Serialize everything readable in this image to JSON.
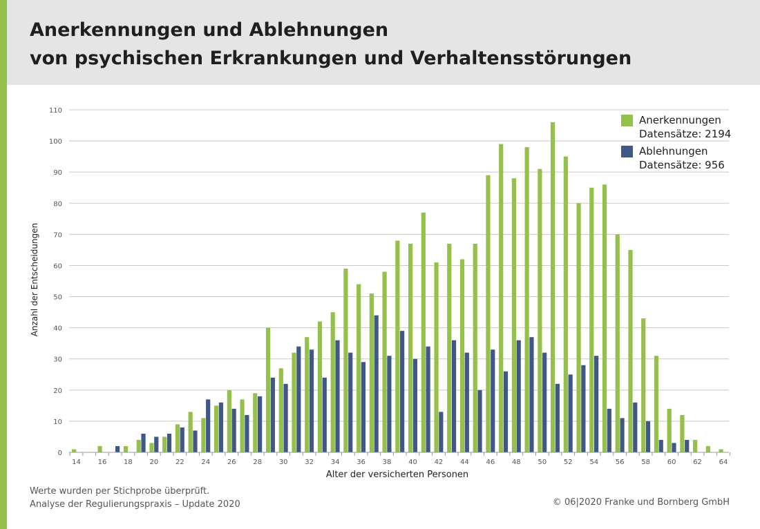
{
  "title": {
    "line1": "Anerkennungen und Ablehnungen",
    "line2": "von psychischen Erkrankungen und Verhaltensstörungen"
  },
  "footer": {
    "note1": "Werte wurden per Stichprobe überprüft.",
    "note2": "Analyse der Regulierungspraxis – Update 2020",
    "copyright": "© 06|2020 Franke und Bornberg GmbH"
  },
  "colors": {
    "accent": "#95c04c",
    "header_bg": "#e5e5e5",
    "anerkennungen": "#95c04c",
    "ablehnungen": "#3f5888",
    "grid": "#c8c8c8"
  },
  "chart_data": {
    "type": "bar",
    "title": "Anerkennungen und Ablehnungen von psychischen Erkrankungen und Verhaltensstörungen",
    "xlabel": "Alter der versicherten Personen",
    "ylabel": "Anzahl der Entscheidungen",
    "ylim": [
      0,
      110
    ],
    "yticks": [
      0,
      10,
      20,
      30,
      40,
      50,
      60,
      70,
      80,
      90,
      100,
      110
    ],
    "xticks": [
      "14",
      "16",
      "18",
      "20",
      "22",
      "24",
      "26",
      "28",
      "30",
      "32",
      "34",
      "36",
      "38",
      "40",
      "42",
      "44",
      "46",
      "48",
      "50",
      "52",
      "54",
      "56",
      "58",
      "60",
      "62",
      "64"
    ],
    "grid": true,
    "legend_position": "top-right",
    "categories": [
      14,
      15,
      16,
      17,
      18,
      19,
      20,
      21,
      22,
      23,
      24,
      25,
      26,
      27,
      28,
      29,
      30,
      31,
      32,
      33,
      34,
      35,
      36,
      37,
      38,
      39,
      40,
      41,
      42,
      43,
      44,
      45,
      46,
      47,
      48,
      49,
      50,
      51,
      52,
      53,
      54,
      55,
      56,
      57,
      58,
      59,
      60,
      61,
      62,
      63,
      64
    ],
    "series": [
      {
        "name": "Anerkennungen",
        "legend_sub": "Datensätze: 2194",
        "color": "#95c04c",
        "values": [
          1,
          0,
          2,
          0,
          2,
          4,
          3,
          5,
          9,
          13,
          11,
          15,
          20,
          17,
          19,
          40,
          27,
          32,
          37,
          42,
          45,
          59,
          54,
          51,
          58,
          68,
          67,
          77,
          61,
          67,
          62,
          67,
          89,
          99,
          88,
          98,
          91,
          106,
          95,
          80,
          85,
          86,
          70,
          65,
          43,
          31,
          14,
          12,
          4,
          2,
          1
        ]
      },
      {
        "name": "Ablehnungen",
        "legend_sub": "Datensätze: 956",
        "color": "#3f5888",
        "values": [
          0,
          0,
          0,
          2,
          0,
          6,
          5,
          6,
          8,
          7,
          17,
          16,
          14,
          12,
          18,
          24,
          22,
          34,
          33,
          24,
          36,
          32,
          29,
          44,
          31,
          39,
          30,
          34,
          13,
          36,
          32,
          20,
          33,
          26,
          36,
          37,
          32,
          22,
          25,
          28,
          31,
          14,
          11,
          16,
          10,
          4,
          3,
          4,
          0,
          0,
          0
        ]
      }
    ]
  }
}
